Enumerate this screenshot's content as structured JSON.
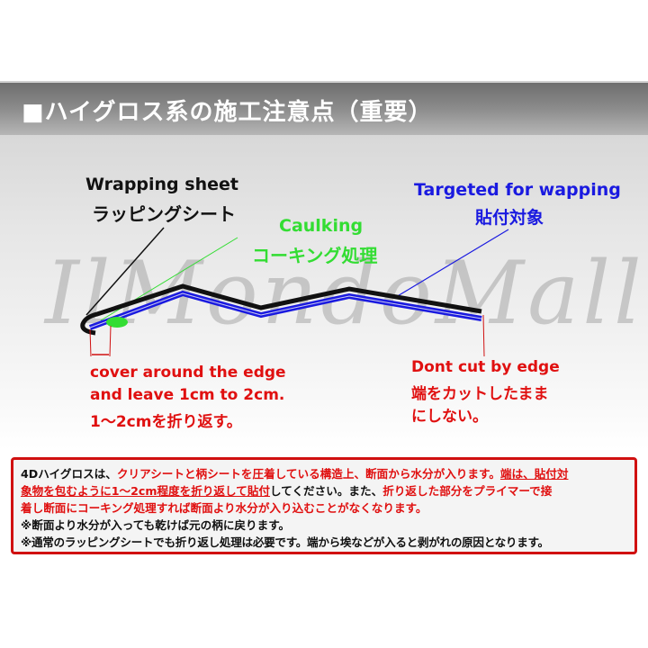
{
  "title": "■ハイグロス系の施工注意点（重要）",
  "watermark": "IlMondoMall",
  "labels": {
    "wrapping_en": "Wrapping sheet",
    "wrapping_jp": "ラッピングシート",
    "caulking_en": "Caulking",
    "caulking_jp": "コーキング処理",
    "target_en": "Targeted for wapping",
    "target_jp": "貼付対象",
    "cover_1": "cover around the edge",
    "cover_2": "and leave 1cm to 2cm.",
    "cover_3": "1～2cmを折り返す。",
    "dont_1": "Dont cut by edge",
    "dont_2": "端をカットしたまま",
    "dont_3": "にしない。"
  },
  "colors": {
    "sheet": "#111111",
    "target": "#1a1ae0",
    "caulking": "#33dd33",
    "warning": "#e01010"
  },
  "note": {
    "l1a": "4Dハイグロスは、",
    "l1b": "クリアシートと柄シートを圧着している構造上、断面から水分が入ります。",
    "l1c": "端は、貼付対",
    "l2a": "象物を包むように1～2cm程度を折り返して貼付",
    "l2b": "してください。また、",
    "l2c": "折り返した部分をプライマーで接",
    "l3": "着し断面にコーキング処理すれば断面より水分が入り込むことがなくなります。",
    "l4": "※断面より水分が入っても乾けば元の柄に戻ります。",
    "l5": "※通常のラッピングシートでも折り返し処理は必要です。端から埃などが入ると剥がれの原因となります。"
  }
}
